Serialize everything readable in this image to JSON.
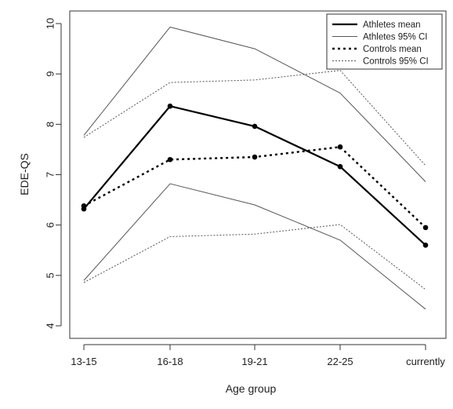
{
  "chart_data": {
    "type": "line",
    "categories": [
      "13-15",
      "16-18",
      "19-21",
      "22-25",
      "currently"
    ],
    "xlabel": "Age group",
    "ylabel": "EDE-QS",
    "ylim": [
      4,
      10
    ],
    "yticks": [
      4,
      5,
      6,
      7,
      8,
      9,
      10
    ],
    "grid": false,
    "legend_position": "top-right",
    "series": [
      {
        "name": "Athletes mean",
        "values": [
          6.32,
          8.36,
          7.96,
          7.16,
          5.6
        ],
        "style": "solid-thick",
        "markers": true,
        "color": "#000000"
      },
      {
        "name": "Athletes 95% CI",
        "values": [
          7.78,
          9.93,
          9.5,
          8.62,
          6.86
        ],
        "style": "solid-thin",
        "markers": false,
        "color": "#555555"
      },
      {
        "name": "",
        "values": [
          4.9,
          6.82,
          6.4,
          5.7,
          4.33
        ],
        "style": "solid-thin",
        "markers": false,
        "color": "#555555"
      },
      {
        "name": "Controls mean",
        "values": [
          6.38,
          7.3,
          7.35,
          7.55,
          5.95
        ],
        "style": "dotted-thick",
        "markers": true,
        "color": "#000000"
      },
      {
        "name": "Controls 95% CI",
        "values": [
          7.74,
          8.83,
          8.88,
          9.07,
          7.18
        ],
        "style": "dotted-thin",
        "markers": false,
        "color": "#555555"
      },
      {
        "name": "",
        "values": [
          4.86,
          5.77,
          5.82,
          6.01,
          4.72
        ],
        "style": "dotted-thin",
        "markers": false,
        "color": "#555555"
      }
    ],
    "legend": [
      {
        "label": "Athletes mean",
        "style": "solid-thick"
      },
      {
        "label": "Athletes 95% CI",
        "style": "solid-thin"
      },
      {
        "label": "Controls mean",
        "style": "dotted-thick"
      },
      {
        "label": "Controls 95% CI",
        "style": "dotted-thin"
      }
    ]
  }
}
